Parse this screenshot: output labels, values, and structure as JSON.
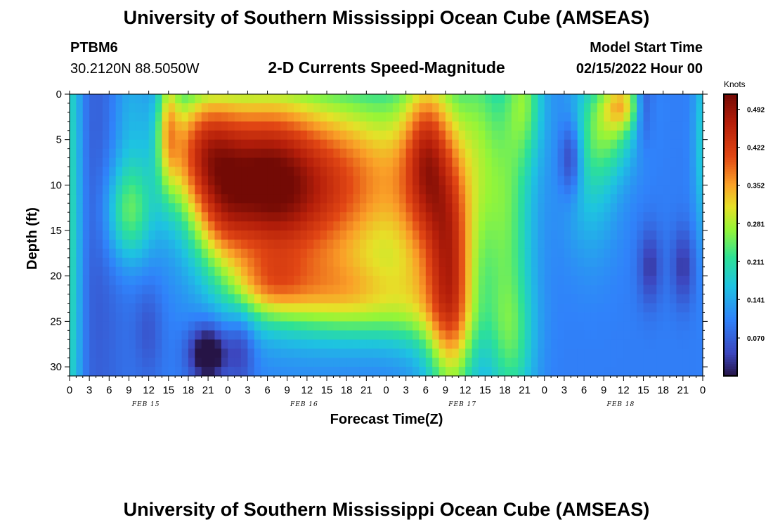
{
  "header": {
    "title": "University of Southern Mississippi Ocean Cube (AMSEAS)",
    "station": "PTBM6",
    "coords": "30.2120N  88.5050W",
    "subtitle": "2-D Currents Speed-Magnitude",
    "model_label": "Model Start Time",
    "model_time": "02/15/2022 Hour 00",
    "footer_title": "University of Southern Mississippi Ocean Cube (AMSEAS)"
  },
  "chart_data": {
    "type": "heatmap",
    "title": "2-D Currents Speed-Magnitude",
    "xlabel": "Forecast Time(Z)",
    "ylabel": "Depth (ft)",
    "xlim": [
      0,
      96
    ],
    "ylim": [
      0,
      31
    ],
    "x_tick_labels": [
      "0",
      "3",
      "6",
      "9",
      "12",
      "15",
      "18",
      "21",
      "0",
      "3",
      "6",
      "9",
      "12",
      "15",
      "18",
      "21",
      "0",
      "3",
      "6",
      "9",
      "12",
      "15",
      "18",
      "21",
      "0",
      "3",
      "6",
      "9",
      "12",
      "15",
      "18",
      "21",
      "0"
    ],
    "y_ticks": [
      0,
      5,
      10,
      15,
      20,
      25,
      30
    ],
    "date_labels": [
      {
        "label": "FEB 15",
        "hour": 12
      },
      {
        "label": "FEB 16",
        "hour": 36
      },
      {
        "label": "FEB 17",
        "hour": 60
      },
      {
        "label": "FEB 18",
        "hour": 84
      }
    ],
    "colorbar": {
      "unit": "Knots",
      "ticks": [
        "0.492",
        "0.422",
        "0.352",
        "0.281",
        "0.211",
        "0.141",
        "0.070"
      ],
      "tick_values": [
        0.492,
        0.422,
        0.352,
        0.281,
        0.211,
        0.141,
        0.07
      ],
      "range": [
        0.0,
        0.52
      ]
    },
    "blobs": [
      {
        "hour": 0,
        "depth": 15,
        "sh": 1.5,
        "sd": 30,
        "v": 0.13
      },
      {
        "hour": 3,
        "depth": 15,
        "sh": 4,
        "sd": 30,
        "v": -0.04
      },
      {
        "hour": 9,
        "depth": 13,
        "sh": 2.5,
        "sd": 4,
        "v": 0.14
      },
      {
        "hour": 9,
        "depth": 2,
        "sh": 2,
        "sd": 6,
        "v": 0.05
      },
      {
        "hour": 12,
        "depth": 26,
        "sh": 1.5,
        "sd": 4,
        "v": -0.04
      },
      {
        "hour": 15,
        "depth": 3,
        "sh": 1.2,
        "sd": 5,
        "v": 0.14
      },
      {
        "hour": 21,
        "depth": 28.5,
        "sh": 2,
        "sd": 2.2,
        "v": -0.15
      },
      {
        "hour": 26,
        "depth": 28,
        "sh": 1.5,
        "sd": 3,
        "v": -0.07
      },
      {
        "hour": 20,
        "depth": 6,
        "sh": 4,
        "sd": 5,
        "v": 0.24
      },
      {
        "hour": 29,
        "depth": 9,
        "sh": 6,
        "sd": 7,
        "v": 0.27
      },
      {
        "hour": 38,
        "depth": 12,
        "sh": 10,
        "sd": 8,
        "v": 0.22
      },
      {
        "hour": 44,
        "depth": 7,
        "sh": 7,
        "sd": 7,
        "v": 0.1
      },
      {
        "hour": 23,
        "depth": 14,
        "sh": 3,
        "sd": 4,
        "v": 0.09
      },
      {
        "hour": 30,
        "depth": 21,
        "sh": 4,
        "sd": 2.5,
        "v": 0.09
      },
      {
        "hour": 42,
        "depth": 22,
        "sh": 9,
        "sd": 3,
        "v": 0.13
      },
      {
        "hour": 52,
        "depth": 25,
        "sh": 8,
        "sd": 2.5,
        "v": 0.04
      },
      {
        "hour": 55,
        "depth": 10,
        "sh": 4,
        "sd": 10,
        "v": 0.22
      },
      {
        "hour": 54,
        "depth": 6,
        "sh": 2,
        "sd": 5,
        "v": 0.08
      },
      {
        "hour": 58,
        "depth": 22,
        "sh": 2.5,
        "sd": 10,
        "v": 0.22
      },
      {
        "hour": 62,
        "depth": 2,
        "sh": 2,
        "sd": 8,
        "v": 0.07
      },
      {
        "hour": 66,
        "depth": 12,
        "sh": 3,
        "sd": 10,
        "v": 0.14
      },
      {
        "hour": 69,
        "depth": 0,
        "sh": 2,
        "sd": 5,
        "v": 0.12
      },
      {
        "hour": 67,
        "depth": 28,
        "sh": 2.5,
        "sd": 6,
        "v": 0.1
      },
      {
        "hour": 76,
        "depth": 7,
        "sh": 1.2,
        "sd": 3,
        "v": -0.1
      },
      {
        "hour": 79,
        "depth": 8,
        "sh": 3,
        "sd": 7,
        "v": 0.08
      },
      {
        "hour": 82,
        "depth": 3,
        "sh": 3,
        "sd": 4,
        "v": 0.12
      },
      {
        "hour": 84,
        "depth": 1,
        "sh": 2,
        "sd": 2,
        "v": 0.14
      },
      {
        "hour": 87,
        "depth": 1,
        "sh": 1,
        "sd": 3,
        "v": -0.08
      },
      {
        "hour": 88,
        "depth": 19,
        "sh": 1.2,
        "sd": 3,
        "v": -0.07
      },
      {
        "hour": 93,
        "depth": 19,
        "sh": 1.2,
        "sd": 3,
        "v": -0.07
      },
      {
        "hour": 96,
        "depth": 5,
        "sh": 1,
        "sd": 8,
        "v": 0.08
      }
    ],
    "base_value": 0.1
  }
}
